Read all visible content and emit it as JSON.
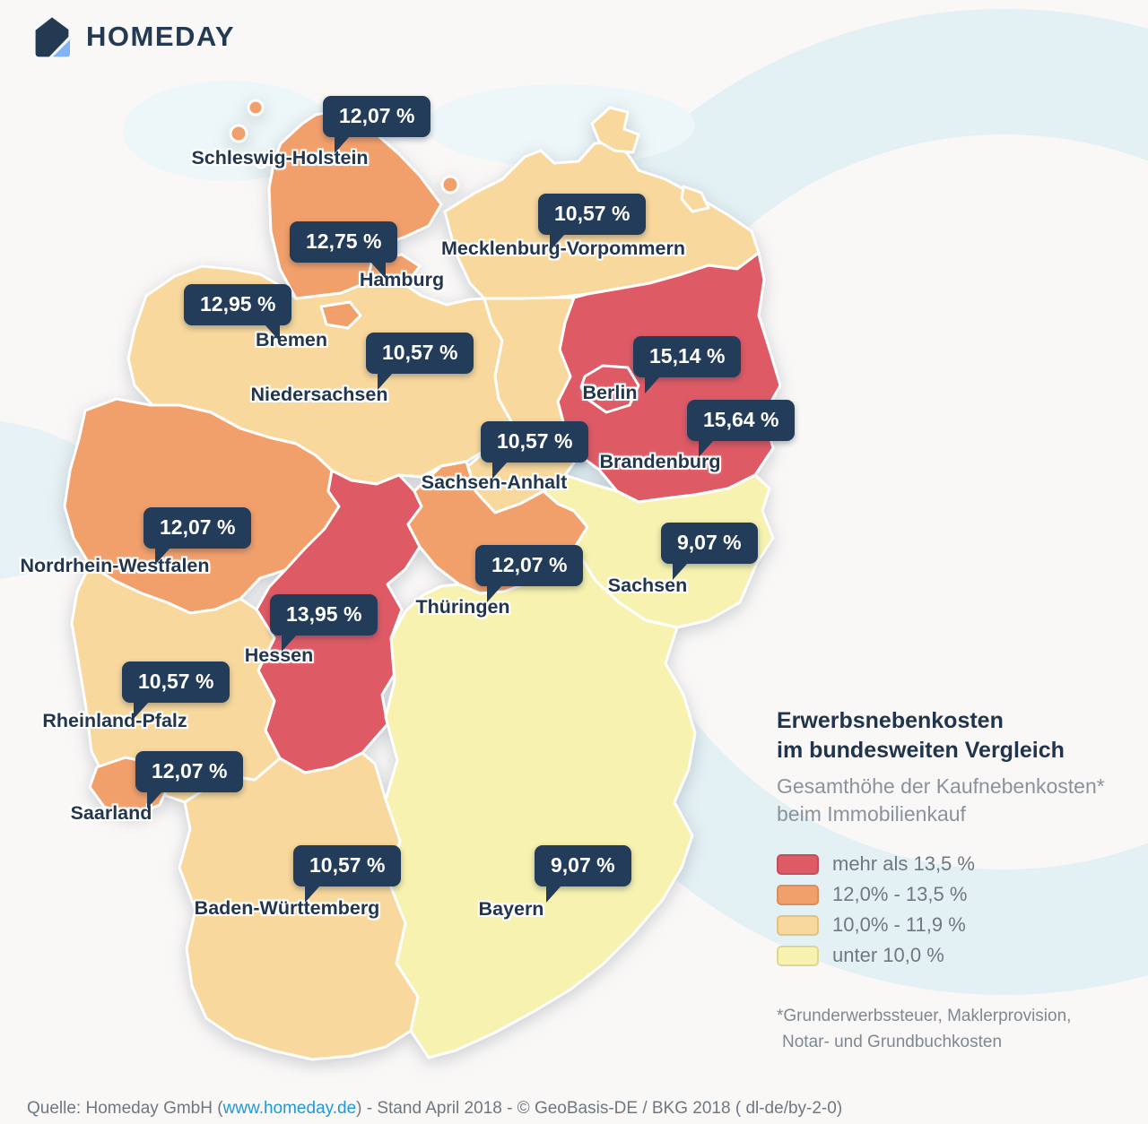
{
  "logo": {
    "text": "HOMEDAY"
  },
  "info_panel": {
    "title_line1": "Erwerbsnebenkosten",
    "title_line2": "im bundesweiten Vergleich",
    "subtitle_line1": "Gesamthöhe der Kaufnebenkosten*",
    "subtitle_line2": "beim Immobilienkauf",
    "footnote_line1": "*Grunderwerbssteuer, Maklerprovision,",
    "footnote_line2": "Notar- und Grundbuchkosten"
  },
  "legend": [
    {
      "category": "mehr_als_13_5",
      "label": "mehr als 13,5 %",
      "color": "#de5b66",
      "border": "#c24e5c"
    },
    {
      "category": "12_0_bis_13_5",
      "label": "12,0% - 13,5 %",
      "color": "#f2a06b",
      "border": "#db8e5c"
    },
    {
      "category": "10_0_bis_11_9",
      "label": "10,0% - 11,9 %",
      "color": "#f8d89c",
      "border": "#e2c183"
    },
    {
      "category": "unter_10_0",
      "label": "unter 10,0 %",
      "color": "#f7f2af",
      "border": "#ddd794"
    }
  ],
  "source": {
    "prefix": "Quelle: Homeday GmbH (",
    "link": "www.homeday.de",
    "suffix": ") - Stand April 2018 -  © GeoBasis-DE / BKG 2018 ( dl-de/by-2-0)"
  },
  "chart_data": {
    "type": "choropleth_map",
    "region": "Deutschland (Bundesländer)",
    "metric": "Gesamthöhe der Kaufnebenkosten beim Immobilienkauf",
    "unit": "%",
    "legend_position": "right",
    "states": [
      {
        "id": "sh",
        "name": "Schleswig-Holstein",
        "value": 12.07,
        "value_label": "12,07 %",
        "category": "12_0_bis_13_5"
      },
      {
        "id": "hh",
        "name": "Hamburg",
        "value": 12.75,
        "value_label": "12,75 %",
        "category": "12_0_bis_13_5"
      },
      {
        "id": "mv",
        "name": "Mecklenburg-Vorpommern",
        "value": 10.57,
        "value_label": "10,57 %",
        "category": "10_0_bis_11_9"
      },
      {
        "id": "hb",
        "name": "Bremen",
        "value": 12.95,
        "value_label": "12,95 %",
        "category": "12_0_bis_13_5"
      },
      {
        "id": "ni",
        "name": "Niedersachsen",
        "value": 10.57,
        "value_label": "10,57 %",
        "category": "10_0_bis_11_9"
      },
      {
        "id": "be",
        "name": "Berlin",
        "value": 15.14,
        "value_label": "15,14 %",
        "category": "mehr_als_13_5"
      },
      {
        "id": "bb",
        "name": "Brandenburg",
        "value": 15.64,
        "value_label": "15,64 %",
        "category": "mehr_als_13_5"
      },
      {
        "id": "st",
        "name": "Sachsen-Anhalt",
        "value": 10.57,
        "value_label": "10,57 %",
        "category": "10_0_bis_11_9"
      },
      {
        "id": "nw",
        "name": "Nordrhein-Westfalen",
        "value": 12.07,
        "value_label": "12,07 %",
        "category": "12_0_bis_13_5"
      },
      {
        "id": "th",
        "name": "Thüringen",
        "value": 12.07,
        "value_label": "12,07 %",
        "category": "12_0_bis_13_5"
      },
      {
        "id": "sn",
        "name": "Sachsen",
        "value": 9.07,
        "value_label": "9,07 %",
        "category": "unter_10_0"
      },
      {
        "id": "he",
        "name": "Hessen",
        "value": 13.95,
        "value_label": "13,95 %",
        "category": "mehr_als_13_5"
      },
      {
        "id": "rp",
        "name": "Rheinland-Pfalz",
        "value": 10.57,
        "value_label": "10,57 %",
        "category": "10_0_bis_11_9"
      },
      {
        "id": "sl",
        "name": "Saarland",
        "value": 12.07,
        "value_label": "12,07 %",
        "category": "12_0_bis_13_5"
      },
      {
        "id": "bw",
        "name": "Baden-Württemberg",
        "value": 10.57,
        "value_label": "10,57 %",
        "category": "10_0_bis_11_9"
      },
      {
        "id": "by",
        "name": "Bayern",
        "value": 9.07,
        "value_label": "9,07 %",
        "category": "unter_10_0"
      }
    ]
  },
  "colors": {
    "callout_bg": "#223c59",
    "label_text": "#22364e",
    "title_text": "#20344c",
    "muted_text": "#8a939d",
    "link": "#1f99d6",
    "background": "#faf8f7",
    "ring": "#e3f0f4"
  }
}
